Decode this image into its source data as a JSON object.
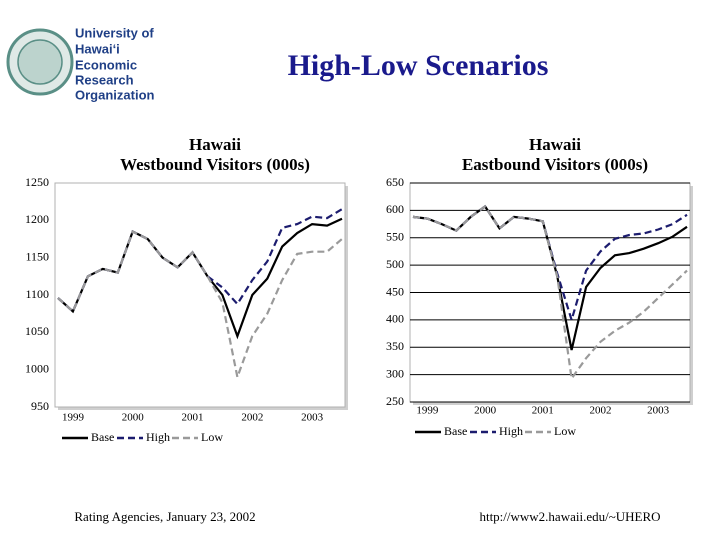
{
  "header": {
    "logo": [
      "University of",
      "Hawai‘i",
      "Economic",
      "Research",
      "Organization"
    ],
    "title": "High-Low Scenarios"
  },
  "footer": {
    "left": "Rating Agencies, January 23, 2002",
    "right": "http://www2.hawaii.edu/~UHERO"
  },
  "chart_data": [
    {
      "type": "line",
      "title": "Hawaii",
      "subtitle": "Westbound Visitors (000s)",
      "categories": [
        null,
        "1999",
        null,
        null,
        null,
        "2000",
        null,
        null,
        null,
        "2001",
        null,
        null,
        null,
        "2002",
        null,
        null,
        null,
        "2003",
        null,
        null
      ],
      "ylim": [
        950,
        1250
      ],
      "yticks": [
        950,
        1000,
        1050,
        1100,
        1150,
        1200,
        1250
      ],
      "grid": false,
      "series": [
        {
          "name": "Base",
          "color": "#000000",
          "dash": "solid",
          "values": [
            1096,
            1078,
            1125,
            1135,
            1130,
            1185,
            1175,
            1150,
            1137,
            1157,
            1125,
            1100,
            1045,
            1100,
            1122,
            1165,
            1183,
            1195,
            1193,
            1202
          ]
        },
        {
          "name": "High",
          "color": "#1c1c6e",
          "dash": "dashed",
          "values": [
            1096,
            1078,
            1125,
            1135,
            1130,
            1185,
            1175,
            1150,
            1137,
            1157,
            1125,
            1110,
            1088,
            1120,
            1145,
            1190,
            1195,
            1205,
            1203,
            1215
          ]
        },
        {
          "name": "Low",
          "color": "#9a9a9a",
          "dash": "dashed",
          "values": [
            1096,
            1078,
            1125,
            1135,
            1130,
            1185,
            1175,
            1150,
            1137,
            1157,
            1125,
            1090,
            990,
            1045,
            1075,
            1120,
            1155,
            1158,
            1158,
            1175
          ]
        }
      ]
    },
    {
      "type": "line",
      "title": "Hawaii",
      "subtitle": "Eastbound Visitors (000s)",
      "categories": [
        null,
        "1999",
        null,
        null,
        null,
        "2000",
        null,
        null,
        null,
        "2001",
        null,
        null,
        null,
        "2002",
        null,
        null,
        null,
        "2003",
        null,
        null
      ],
      "ylim": [
        250,
        650
      ],
      "yticks": [
        250,
        300,
        350,
        400,
        450,
        500,
        550,
        600,
        650
      ],
      "grid": true,
      "series": [
        {
          "name": "Base",
          "color": "#000000",
          "dash": "solid",
          "values": [
            588,
            585,
            575,
            563,
            588,
            607,
            567,
            588,
            585,
            580,
            480,
            345,
            460,
            495,
            518,
            522,
            530,
            540,
            552,
            570
          ]
        },
        {
          "name": "High",
          "color": "#1c1c6e",
          "dash": "dashed",
          "values": [
            588,
            585,
            575,
            563,
            588,
            607,
            567,
            588,
            585,
            580,
            485,
            400,
            490,
            525,
            548,
            555,
            558,
            565,
            575,
            592
          ]
        },
        {
          "name": "Low",
          "color": "#9a9a9a",
          "dash": "dashed",
          "values": [
            588,
            585,
            575,
            563,
            588,
            607,
            567,
            588,
            585,
            580,
            480,
            293,
            330,
            360,
            380,
            395,
            415,
            440,
            465,
            490
          ]
        }
      ]
    }
  ]
}
